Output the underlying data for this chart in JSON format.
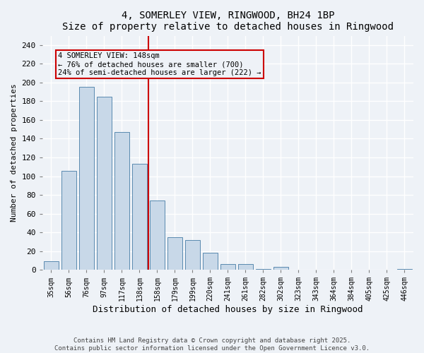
{
  "title": "4, SOMERLEY VIEW, RINGWOOD, BH24 1BP",
  "subtitle": "Size of property relative to detached houses in Ringwood",
  "xlabel": "Distribution of detached houses by size in Ringwood",
  "ylabel": "Number of detached properties",
  "categories": [
    "35sqm",
    "56sqm",
    "76sqm",
    "97sqm",
    "117sqm",
    "138sqm",
    "158sqm",
    "179sqm",
    "199sqm",
    "220sqm",
    "241sqm",
    "261sqm",
    "282sqm",
    "302sqm",
    "323sqm",
    "343sqm",
    "364sqm",
    "384sqm",
    "405sqm",
    "425sqm",
    "446sqm"
  ],
  "values": [
    9,
    106,
    195,
    185,
    147,
    113,
    74,
    35,
    32,
    18,
    6,
    6,
    1,
    3,
    0,
    0,
    0,
    0,
    0,
    0,
    1
  ],
  "bar_color": "#c8d8e8",
  "bar_edge_color": "#5a8ab0",
  "vline_x": 5.5,
  "vline_color": "#cc0000",
  "annotation_text": "4 SOMERLEY VIEW: 148sqm\n← 76% of detached houses are smaller (700)\n24% of semi-detached houses are larger (222) →",
  "ylim": [
    0,
    250
  ],
  "yticks": [
    0,
    20,
    40,
    60,
    80,
    100,
    120,
    140,
    160,
    180,
    200,
    220,
    240
  ],
  "background_color": "#eef2f7",
  "footer_line1": "Contains HM Land Registry data © Crown copyright and database right 2025.",
  "footer_line2": "Contains public sector information licensed under the Open Government Licence v3.0."
}
